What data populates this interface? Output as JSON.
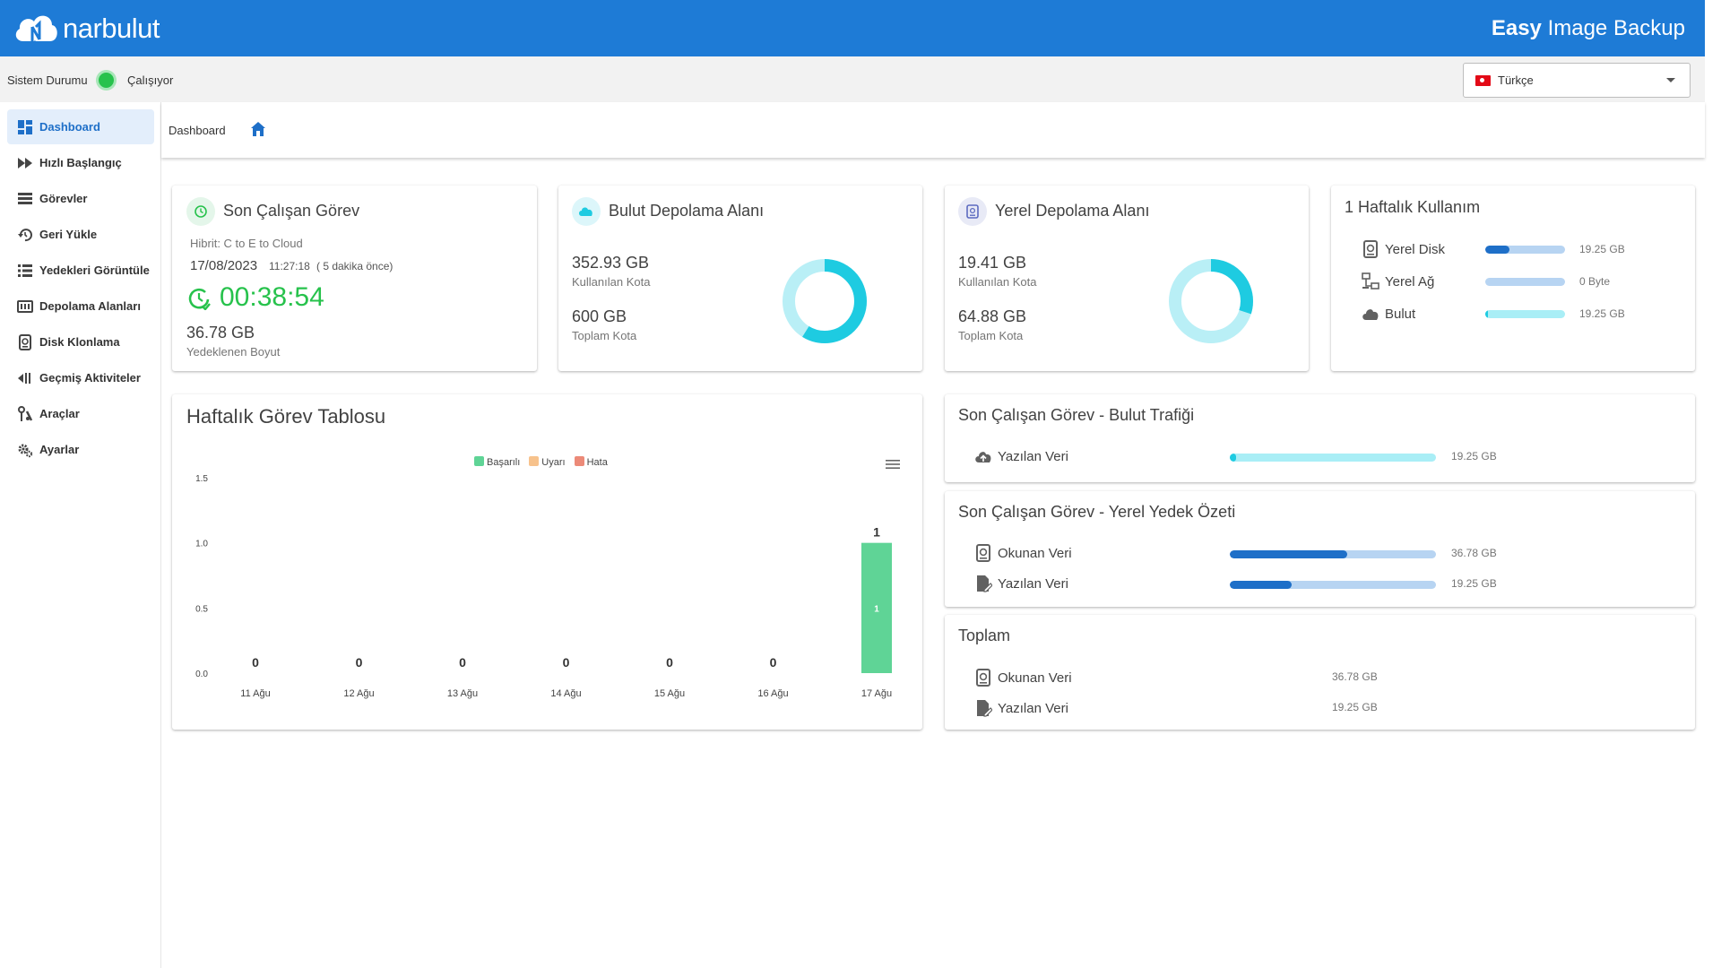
{
  "header": {
    "logo_text": "narbulut",
    "app_title_bold": "Easy",
    "app_title_rest": " Image Backup"
  },
  "status": {
    "label": "Sistem Durumu",
    "value": "Çalışıyor",
    "language": "Türkçe"
  },
  "sidebar": {
    "items": [
      {
        "label": "Dashboard"
      },
      {
        "label": "Hızlı Başlangıç"
      },
      {
        "label": "Görevler"
      },
      {
        "label": "Geri Yükle"
      },
      {
        "label": "Yedekleri Görüntüle"
      },
      {
        "label": "Depolama Alanları"
      },
      {
        "label": "Disk Klonlama"
      },
      {
        "label": "Geçmiş Aktiviteler"
      },
      {
        "label": "Araçlar"
      },
      {
        "label": "Ayarlar"
      }
    ]
  },
  "breadcrumb": {
    "current": "Dashboard"
  },
  "last_task": {
    "title": "Son Çalışan Görev",
    "task_name": "Hibrit: C to E to Cloud",
    "date": "17/08/2023",
    "time": "11:27:18",
    "ago": "( 5 dakika önce)",
    "duration": "00:38:54",
    "size": "36.78 GB",
    "size_label": "Yedeklenen Boyut"
  },
  "cloud_storage": {
    "title": "Bulut Depolama Alanı",
    "used": "352.93 GB",
    "used_label": "Kullanılan Kota",
    "total": "600 GB",
    "total_label": "Toplam Kota",
    "used_fraction": 0.588
  },
  "local_storage": {
    "title": "Yerel Depolama Alanı",
    "used": "19.41 GB",
    "used_label": "Kullanılan Kota",
    "total": "64.88 GB",
    "total_label": "Toplam Kota",
    "used_fraction": 0.299
  },
  "weekly_usage": {
    "title": "1 Haftalık Kullanım",
    "rows": [
      {
        "label": "Yerel Disk",
        "value": "19.25 GB",
        "fraction": 0.3
      },
      {
        "label": "Yerel Ağ",
        "value": "0 Byte",
        "fraction": 0
      },
      {
        "label": "Bulut",
        "value": "19.25 GB",
        "fraction": 0.03
      }
    ]
  },
  "weekly_chart": {
    "title": "Haftalık Görev Tablosu",
    "menu_icon": "hamburger-menu-icon"
  },
  "chart_data": {
    "type": "bar",
    "categories": [
      "11 Ağu",
      "12 Ağu",
      "13 Ağu",
      "14 Ağu",
      "15 Ağu",
      "16 Ağu",
      "17 Ağu"
    ],
    "series": [
      {
        "name": "Başarılı",
        "values": [
          0,
          0,
          0,
          0,
          0,
          0,
          1
        ],
        "color": "#5fd496"
      },
      {
        "name": "Uyarı",
        "values": [
          0,
          0,
          0,
          0,
          0,
          0,
          0
        ],
        "color": "#f7c28c"
      },
      {
        "name": "Hata",
        "values": [
          0,
          0,
          0,
          0,
          0,
          0,
          0
        ],
        "color": "#ec8a78"
      }
    ],
    "totals": [
      "0",
      "0",
      "0",
      "0",
      "0",
      "0",
      "1"
    ],
    "inner_label": "1",
    "yticks": [
      "0.0",
      "0.5",
      "1.0",
      "1.5"
    ],
    "ylim": [
      0,
      1.5
    ]
  },
  "cloud_traffic": {
    "title": "Son Çalışan Görev - Bulut Trafiği",
    "rows": [
      {
        "label": "Yazılan Veri",
        "value": "19.25 GB",
        "fraction": 0.03
      }
    ]
  },
  "local_summary": {
    "title": "Son Çalışan Görev - Yerel Yedek Özeti",
    "rows": [
      {
        "label": "Okunan Veri",
        "value": "36.78 GB",
        "fraction": 0.57
      },
      {
        "label": "Yazılan Veri",
        "value": "19.25 GB",
        "fraction": 0.3
      }
    ]
  },
  "totals_card": {
    "title": "Toplam",
    "rows": [
      {
        "label": "Okunan Veri",
        "value": "36.78 GB"
      },
      {
        "label": "Yazılan Veri",
        "value": "19.25 GB"
      }
    ]
  },
  "colors": {
    "brand": "#1e7bd6",
    "success": "#27c24c",
    "cyan": "#1ecbe1",
    "dark_bar": "#1e6fc8"
  }
}
